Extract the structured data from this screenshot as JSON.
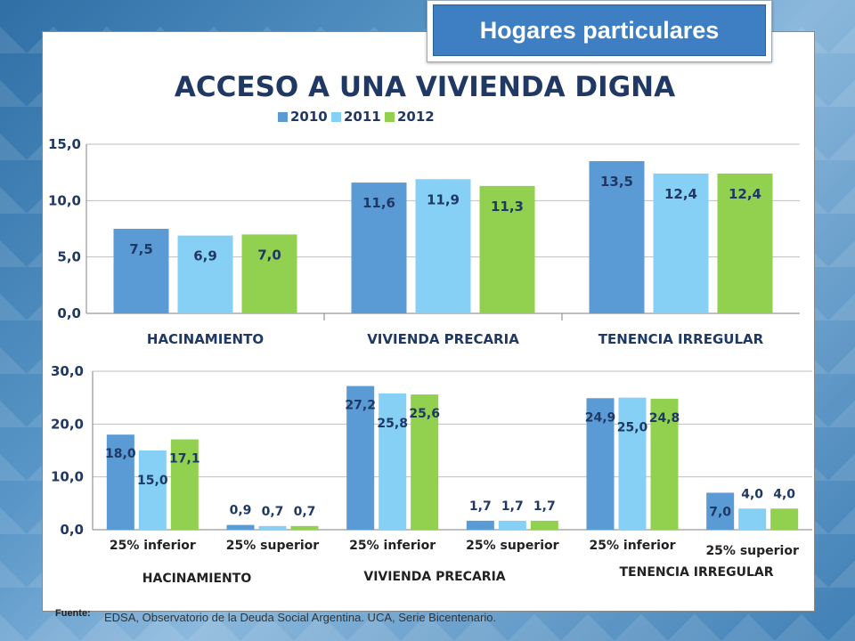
{
  "badge": "Hogares particulares",
  "source": {
    "label": "Fuente:",
    "text": "EDSA, Observatorio de la Deuda Social Argentina. UCA, Serie Bicentenario."
  },
  "colors": {
    "s2010": "#5b9bd5",
    "s2011": "#86d0f5",
    "s2012": "#92d050",
    "title": "#1f3864",
    "label": "#1f3864"
  },
  "chart_data": [
    {
      "type": "bar",
      "title": "ACCESO A UNA VIVIENDA DIGNA",
      "legend": "top",
      "grid": true,
      "ylim": [
        0,
        15
      ],
      "yticks": [
        "0,0",
        "5,0",
        "10,0",
        "15,0"
      ],
      "categories": [
        "HACINAMIENTO",
        "VIVIENDA PRECARIA",
        "TENENCIA IRREGULAR"
      ],
      "series": [
        {
          "name": "2010",
          "values": [
            7.5,
            11.6,
            13.5
          ],
          "labels": [
            "7,5",
            "11,6",
            "13,5"
          ]
        },
        {
          "name": "2011",
          "values": [
            6.9,
            11.9,
            12.4
          ],
          "labels": [
            "6,9",
            "11,9",
            "12,4"
          ]
        },
        {
          "name": "2012",
          "values": [
            7.0,
            11.3,
            12.4
          ],
          "labels": [
            "7,0",
            "11,3",
            "12,4"
          ]
        }
      ]
    },
    {
      "type": "bar",
      "grid": true,
      "ylim": [
        0,
        30
      ],
      "yticks": [
        "0,0",
        "10,0",
        "20,0",
        "30,0"
      ],
      "categories": [
        "25% inferior",
        "25% superior",
        "25% inferior",
        "25% superior",
        "25% inferior",
        "25% superior"
      ],
      "groups": [
        "HACINAMIENTO",
        "VIVIENDA PRECARIA",
        "TENENCIA IRREGULAR"
      ],
      "series": [
        {
          "name": "2010",
          "values": [
            18.0,
            0.9,
            27.2,
            1.7,
            24.9,
            7.0
          ],
          "labels": [
            "18,0",
            "0,9",
            "27,2",
            "1,7",
            "24,9",
            "7,0"
          ]
        },
        {
          "name": "2011",
          "values": [
            15.0,
            0.7,
            25.8,
            1.7,
            25.0,
            4.0
          ],
          "labels": [
            "15,0",
            "0,7",
            "25,8",
            "1,7",
            "25,0",
            "4,0"
          ]
        },
        {
          "name": "2012",
          "values": [
            17.1,
            0.7,
            25.6,
            1.7,
            24.8,
            4.0
          ],
          "labels": [
            "17,1",
            "0,7",
            "25,6",
            "1,7",
            "24,8",
            "4,0"
          ]
        }
      ]
    }
  ]
}
